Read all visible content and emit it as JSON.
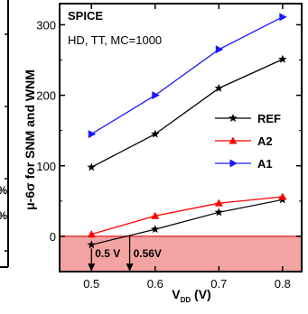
{
  "chart_data": {
    "type": "line",
    "title": "SPICE",
    "subtitle": "HD, TT, MC=1000",
    "xlabel_main": "V",
    "xlabel_sub": "DD",
    "xlabel_unit": " (V)",
    "ylabel": "μ-6σ for SNM and WNM",
    "x": [
      0.5,
      0.6,
      0.7,
      0.8
    ],
    "xlim": [
      0.45,
      0.83
    ],
    "ylim": [
      -50,
      330
    ],
    "xticks": [
      0.5,
      0.6,
      0.7,
      0.8
    ],
    "xtick_labels": [
      "0.5",
      "0.6",
      "0.7",
      "0.8"
    ],
    "yticks": [
      0,
      100,
      200,
      300
    ],
    "ytick_labels": [
      "0",
      "100",
      "200",
      "300"
    ],
    "series": [
      {
        "name": "REF",
        "marker": "star",
        "color": "#000000",
        "values": [
          98,
          145,
          210,
          251
        ]
      },
      {
        "name": "A2",
        "marker": "triangle-up",
        "color": "#ff0000",
        "values": [
          3,
          29,
          47,
          56
        ]
      },
      {
        "name": "A1",
        "marker": "triangle-right",
        "color": "#1a1aff",
        "values": [
          145,
          200,
          265,
          311
        ]
      }
    ],
    "ref_low_series": {
      "values": [
        -12,
        10,
        34,
        52
      ]
    },
    "failure_region": {
      "y_from": -50,
      "y_to": 0,
      "color": "#f4a3a3"
    },
    "annotations": [
      {
        "text": "0.5 V",
        "x": 0.5
      },
      {
        "text": "0.56V",
        "x": 0.56
      }
    ],
    "legend_placement": "right-middle",
    "grid": false
  },
  "left_panel_fragments": [
    "%",
    "%"
  ]
}
